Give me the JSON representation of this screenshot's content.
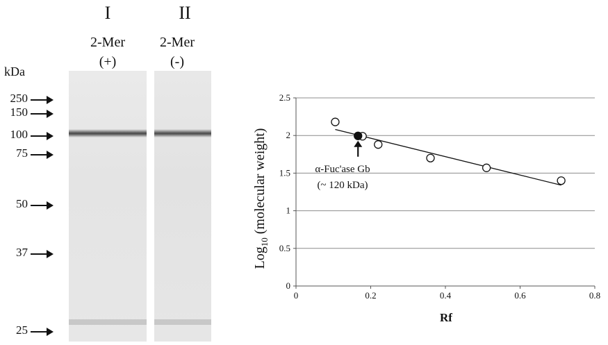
{
  "gel": {
    "lanes": [
      {
        "roman": "I",
        "reagent": "2-Mer",
        "sign": "(+)"
      },
      {
        "roman": "II",
        "reagent": "2-Mer",
        "sign": "(-)"
      }
    ],
    "unit_label": "kDa",
    "markers": [
      "250",
      "150",
      "100",
      "75",
      "50",
      "37",
      "25"
    ]
  },
  "chart_data": {
    "type": "scatter",
    "xlabel": "Rf",
    "ylabel": "Log10 (molecular weight)",
    "xlim": [
      0,
      0.8
    ],
    "ylim": [
      0,
      2.5
    ],
    "xticks": [
      "0",
      "0.2",
      "0.4",
      "0.6",
      "0.8"
    ],
    "yticks": [
      "0",
      "0.5",
      "1",
      "1.5",
      "2",
      "2.5"
    ],
    "grid": true,
    "series": [
      {
        "marker": "open-circle",
        "x": [
          0.105,
          0.178,
          0.22,
          0.36,
          0.51,
          0.71
        ],
        "y": [
          2.18,
          1.99,
          1.88,
          1.7,
          1.57,
          1.4
        ]
      },
      {
        "marker": "filled-circle",
        "x": [
          0.166
        ],
        "y": [
          1.995
        ]
      }
    ],
    "trendline": {
      "x": [
        0.105,
        0.71
      ],
      "y": [
        2.08,
        1.34
      ]
    },
    "annotation": {
      "line1": "α-Fuc'ase Gb",
      "line2": "(~ 120 kDa)"
    }
  }
}
